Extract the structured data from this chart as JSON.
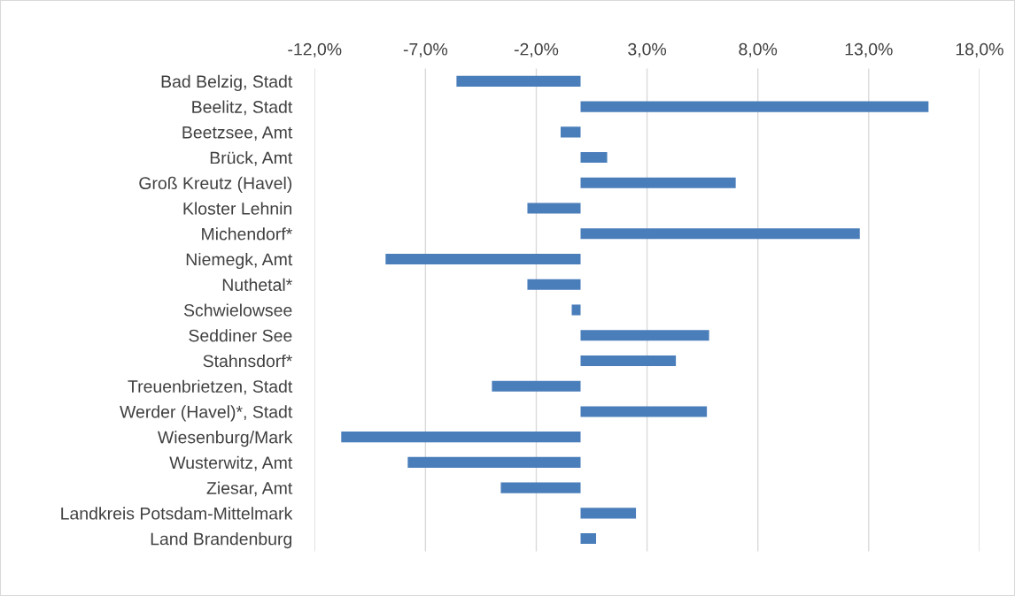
{
  "chart_data": {
    "type": "bar",
    "orientation": "horizontal",
    "categories": [
      "Bad Belzig, Stadt",
      "Beelitz, Stadt",
      "Beetzsee, Amt",
      "Brück, Amt",
      "Groß Kreutz (Havel)",
      "Kloster Lehnin",
      "Michendorf*",
      "Niemegk, Amt",
      "Nuthetal*",
      "Schwielowsee",
      "Seddiner See",
      "Stahnsdorf*",
      "Treuenbrietzen, Stadt",
      "Werder (Havel)*, Stadt",
      "Wiesenburg/Mark",
      "Wusterwitz, Amt",
      "Ziesar, Amt",
      "Landkreis Potsdam-Mittelmark",
      "Land Brandenburg"
    ],
    "values": [
      -5.6,
      15.7,
      -0.9,
      1.2,
      7.0,
      -2.4,
      12.6,
      -8.8,
      -2.4,
      -0.4,
      5.8,
      4.3,
      -4.0,
      5.7,
      -10.8,
      -7.8,
      -3.6,
      2.5,
      0.7
    ],
    "color": "#4a7ebb",
    "xlim": [
      -12,
      18
    ],
    "xticks": [
      {
        "value": -12,
        "label": "-12,0%"
      },
      {
        "value": -7,
        "label": "-7,0%"
      },
      {
        "value": -2,
        "label": "-2,0%"
      },
      {
        "value": 3,
        "label": "3,0%"
      },
      {
        "value": 8,
        "label": "8,0%"
      },
      {
        "value": 13,
        "label": "13,0%"
      },
      {
        "value": 18,
        "label": "18,0%"
      }
    ],
    "grid": "x"
  }
}
